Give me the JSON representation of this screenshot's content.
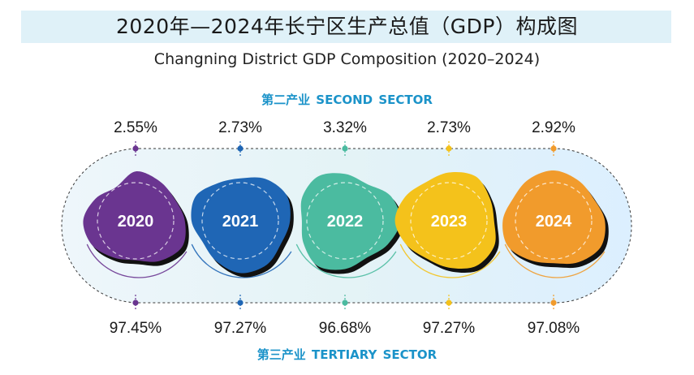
{
  "title": "2020年—2024年长宁区生产总值（GDP）构成图",
  "subtitle": "Changning District GDP Composition (2020–2024)",
  "second_sector_label": "第二产业   SECOND SECTOR",
  "tertiary_sector_label": "第三产业   TERTIARY SECTOR",
  "chart_data": {
    "type": "table",
    "categories": [
      "2020",
      "2021",
      "2022",
      "2023",
      "2024"
    ],
    "series": [
      {
        "name": "第二产业 SECOND SECTOR",
        "values": [
          2.55,
          2.73,
          3.32,
          2.73,
          2.92
        ],
        "labels": [
          "2.55%",
          "2.73%",
          "3.32%",
          "2.73%",
          "2.92%"
        ]
      },
      {
        "name": "第三产业 TERTIARY SECTOR",
        "values": [
          97.45,
          97.27,
          96.68,
          97.27,
          97.08
        ],
        "labels": [
          "97.45%",
          "97.27%",
          "96.68%",
          "97.27%",
          "97.08%"
        ]
      }
    ],
    "colors": [
      "#6a3590",
      "#1f66b5",
      "#4bbba0",
      "#f4c21b",
      "#f19b2c"
    ]
  }
}
